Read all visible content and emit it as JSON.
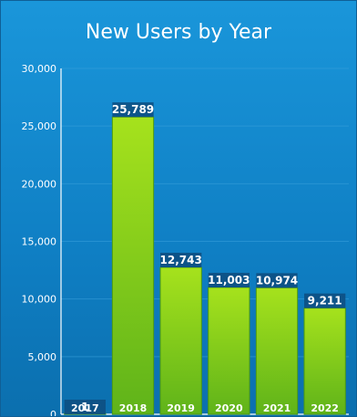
{
  "colors": {
    "background": "#1488cf",
    "bar_top": "#a6e21c",
    "bar_bottom": "#5fb31a",
    "label_box": "#0d4f82",
    "grid": "#3aa0dc"
  },
  "chart_data": {
    "type": "bar",
    "title": "New Users by Year",
    "xlabel": "",
    "ylabel": "",
    "categories": [
      "2017",
      "2018",
      "2019",
      "2020",
      "2021",
      "2022"
    ],
    "values": [
      1,
      25789,
      12743,
      11003,
      10974,
      9211
    ],
    "value_labels": [
      "1",
      "25,789",
      "12,743",
      "11,003",
      "10,974",
      "9,211"
    ],
    "ylim": [
      0,
      30000
    ],
    "yticks": [
      0,
      5000,
      10000,
      15000,
      20000,
      25000,
      30000
    ],
    "ytick_labels": [
      "0",
      "5,000",
      "10,000",
      "15,000",
      "20,000",
      "25,000",
      "30,000"
    ],
    "grid": true,
    "legend": "none"
  }
}
